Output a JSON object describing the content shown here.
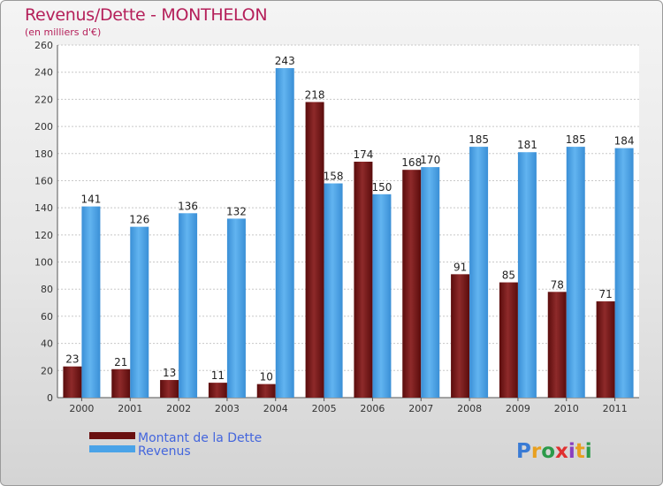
{
  "chart_data": {
    "type": "bar",
    "title": "Revenus/Dette - MONTHELON",
    "subtitle": "(en milliers d'€)",
    "categories": [
      "2000",
      "2001",
      "2002",
      "2003",
      "2004",
      "2005",
      "2006",
      "2007",
      "2008",
      "2009",
      "2010",
      "2011"
    ],
    "series": [
      {
        "name": "Montant de la Dette",
        "color": "#7a1a1a",
        "values": [
          23,
          21,
          13,
          11,
          10,
          218,
          174,
          168,
          91,
          85,
          78,
          71
        ]
      },
      {
        "name": "Revenus",
        "color": "#4aa3e8",
        "values": [
          141,
          126,
          136,
          132,
          243,
          158,
          150,
          170,
          185,
          181,
          185,
          184
        ]
      }
    ],
    "ylim": [
      0,
      260
    ],
    "ytick_step": 20,
    "grid": true,
    "legend": "bottom-left",
    "xlabel": "",
    "ylabel": ""
  },
  "branding": {
    "logo_text": "Proxiti"
  }
}
